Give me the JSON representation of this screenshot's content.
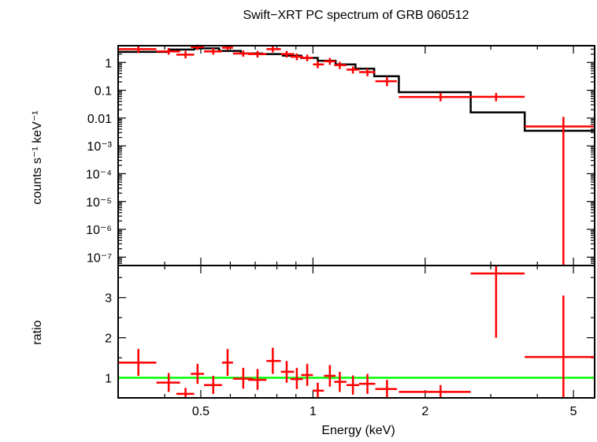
{
  "chart_data": [
    {
      "type": "scatter",
      "title": "Swift−XRT PC spectrum of GRB 060512",
      "xlabel": "Energy (keV)",
      "ylabel": "counts s⁻¹ keV⁻¹",
      "xscale": "log",
      "yscale": "log",
      "xlim": [
        0.3,
        5.7
      ],
      "ylim": [
        5e-08,
        4
      ],
      "x_ticks": [
        "0.5",
        "1",
        "2",
        "5"
      ],
      "y_ticks": [
        "1",
        "0.1",
        "0.01",
        "10⁻³",
        "10⁻⁴",
        "10⁻⁵",
        "10⁻⁶",
        "10⁻⁷"
      ],
      "series": [
        {
          "style": "error bars",
          "color": "#ff0000",
          "points": [
            {
              "x": 0.34,
              "xlo": 0.3,
              "xhi": 0.38,
              "y": 3.0,
              "ylo": 2.2,
              "yhi": 4.0
            },
            {
              "x": 0.41,
              "xlo": 0.38,
              "xhi": 0.44,
              "y": 2.5,
              "ylo": 1.9,
              "yhi": 3.3
            },
            {
              "x": 0.455,
              "xlo": 0.43,
              "xhi": 0.48,
              "y": 1.9,
              "ylo": 1.4,
              "yhi": 2.6
            },
            {
              "x": 0.49,
              "xlo": 0.47,
              "xhi": 0.51,
              "y": 3.6,
              "ylo": 2.8,
              "yhi": 4.4
            },
            {
              "x": 0.54,
              "xlo": 0.51,
              "xhi": 0.57,
              "y": 2.5,
              "ylo": 1.9,
              "yhi": 3.3
            },
            {
              "x": 0.59,
              "xlo": 0.57,
              "xhi": 0.61,
              "y": 3.4,
              "ylo": 2.7,
              "yhi": 4.2
            },
            {
              "x": 0.65,
              "xlo": 0.61,
              "xhi": 0.69,
              "y": 2.1,
              "ylo": 1.6,
              "yhi": 2.7
            },
            {
              "x": 0.71,
              "xlo": 0.67,
              "xhi": 0.75,
              "y": 2.0,
              "ylo": 1.5,
              "yhi": 2.6
            },
            {
              "x": 0.78,
              "xlo": 0.75,
              "xhi": 0.82,
              "y": 3.0,
              "ylo": 2.3,
              "yhi": 3.8
            },
            {
              "x": 0.85,
              "xlo": 0.82,
              "xhi": 0.89,
              "y": 2.0,
              "ylo": 1.5,
              "yhi": 2.6
            },
            {
              "x": 0.905,
              "xlo": 0.87,
              "xhi": 0.94,
              "y": 1.6,
              "ylo": 1.2,
              "yhi": 2.1
            },
            {
              "x": 0.965,
              "xlo": 0.93,
              "xhi": 1.0,
              "y": 1.45,
              "ylo": 1.1,
              "yhi": 1.9
            },
            {
              "x": 1.03,
              "xlo": 1.0,
              "xhi": 1.07,
              "y": 0.85,
              "ylo": 0.62,
              "yhi": 1.1
            },
            {
              "x": 1.11,
              "xlo": 1.07,
              "xhi": 1.15,
              "y": 1.1,
              "ylo": 0.82,
              "yhi": 1.45
            },
            {
              "x": 1.18,
              "xlo": 1.14,
              "xhi": 1.23,
              "y": 0.8,
              "ylo": 0.58,
              "yhi": 1.05
            },
            {
              "x": 1.28,
              "xlo": 1.23,
              "xhi": 1.33,
              "y": 0.55,
              "ylo": 0.4,
              "yhi": 0.72
            },
            {
              "x": 1.4,
              "xlo": 1.33,
              "xhi": 1.47,
              "y": 0.45,
              "ylo": 0.32,
              "yhi": 0.6
            },
            {
              "x": 1.58,
              "xlo": 1.47,
              "xhi": 1.68,
              "y": 0.21,
              "ylo": 0.14,
              "yhi": 0.3
            },
            {
              "x": 2.2,
              "xlo": 1.7,
              "xhi": 2.65,
              "y": 0.057,
              "ylo": 0.04,
              "yhi": 0.08
            },
            {
              "x": 3.1,
              "xlo": 2.65,
              "xhi": 3.7,
              "y": 0.058,
              "ylo": 0.04,
              "yhi": 0.08
            },
            {
              "x": 4.7,
              "xlo": 3.7,
              "xhi": 5.7,
              "y": 0.005,
              "ylo": 5e-08,
              "yhi": 0.011
            }
          ]
        },
        {
          "style": "step",
          "color": "#000000",
          "steps": [
            {
              "x0": 0.3,
              "x1": 0.41,
              "y": 2.4
            },
            {
              "x0": 0.41,
              "x1": 0.48,
              "y": 2.9
            },
            {
              "x0": 0.48,
              "x1": 0.56,
              "y": 3.2
            },
            {
              "x0": 0.56,
              "x1": 0.64,
              "y": 2.6
            },
            {
              "x0": 0.64,
              "x1": 0.73,
              "y": 2.1
            },
            {
              "x0": 0.73,
              "x1": 0.83,
              "y": 2.0
            },
            {
              "x0": 0.83,
              "x1": 0.93,
              "y": 1.75
            },
            {
              "x0": 0.93,
              "x1": 1.03,
              "y": 1.45
            },
            {
              "x0": 1.03,
              "x1": 1.15,
              "y": 1.15
            },
            {
              "x0": 1.15,
              "x1": 1.3,
              "y": 0.85
            },
            {
              "x0": 1.3,
              "x1": 1.46,
              "y": 0.6
            },
            {
              "x0": 1.46,
              "x1": 1.7,
              "y": 0.32
            },
            {
              "x0": 1.7,
              "x1": 2.65,
              "y": 0.085
            },
            {
              "x0": 2.65,
              "x1": 3.7,
              "y": 0.016
            },
            {
              "x0": 3.7,
              "x1": 5.7,
              "y": 0.0035
            }
          ]
        }
      ]
    },
    {
      "type": "scatter",
      "xlabel": "Energy (keV)",
      "ylabel": "ratio",
      "xscale": "log",
      "xlim": [
        0.3,
        5.7
      ],
      "ylim": [
        0.5,
        3.8
      ],
      "x_ticks": [
        "0.5",
        "1",
        "2",
        "5"
      ],
      "y_ticks": [
        "1",
        "2",
        "3"
      ],
      "reference_line": {
        "y": 1,
        "color": "#00ff00"
      },
      "series": [
        {
          "style": "error bars",
          "color": "#ff0000",
          "points": [
            {
              "x": 0.34,
              "xlo": 0.3,
              "xhi": 0.38,
              "y": 1.38,
              "ylo": 1.05,
              "yhi": 1.72
            },
            {
              "x": 0.41,
              "xlo": 0.38,
              "xhi": 0.44,
              "y": 0.88,
              "ylo": 0.65,
              "yhi": 1.12
            },
            {
              "x": 0.455,
              "xlo": 0.43,
              "xhi": 0.48,
              "y": 0.6,
              "ylo": 0.5,
              "yhi": 0.75
            },
            {
              "x": 0.49,
              "xlo": 0.47,
              "xhi": 0.51,
              "y": 1.1,
              "ylo": 0.85,
              "yhi": 1.35
            },
            {
              "x": 0.54,
              "xlo": 0.51,
              "xhi": 0.57,
              "y": 0.82,
              "ylo": 0.6,
              "yhi": 1.05
            },
            {
              "x": 0.59,
              "xlo": 0.57,
              "xhi": 0.61,
              "y": 1.38,
              "ylo": 1.05,
              "yhi": 1.72
            },
            {
              "x": 0.65,
              "xlo": 0.61,
              "xhi": 0.69,
              "y": 0.98,
              "ylo": 0.73,
              "yhi": 1.25
            },
            {
              "x": 0.71,
              "xlo": 0.67,
              "xhi": 0.75,
              "y": 0.95,
              "ylo": 0.7,
              "yhi": 1.22
            },
            {
              "x": 0.78,
              "xlo": 0.75,
              "xhi": 0.82,
              "y": 1.42,
              "ylo": 1.1,
              "yhi": 1.75
            },
            {
              "x": 0.85,
              "xlo": 0.82,
              "xhi": 0.89,
              "y": 1.15,
              "ylo": 0.88,
              "yhi": 1.42
            },
            {
              "x": 0.905,
              "xlo": 0.87,
              "xhi": 0.94,
              "y": 0.97,
              "ylo": 0.72,
              "yhi": 1.25
            },
            {
              "x": 0.965,
              "xlo": 0.93,
              "xhi": 1.0,
              "y": 1.07,
              "ylo": 0.8,
              "yhi": 1.35
            },
            {
              "x": 1.03,
              "xlo": 1.0,
              "xhi": 1.07,
              "y": 0.68,
              "ylo": 0.5,
              "yhi": 0.88
            },
            {
              "x": 1.11,
              "xlo": 1.07,
              "xhi": 1.15,
              "y": 1.05,
              "ylo": 0.78,
              "yhi": 1.32
            },
            {
              "x": 1.18,
              "xlo": 1.14,
              "xhi": 1.23,
              "y": 0.9,
              "ylo": 0.65,
              "yhi": 1.15
            },
            {
              "x": 1.28,
              "xlo": 1.23,
              "xhi": 1.33,
              "y": 0.82,
              "ylo": 0.58,
              "yhi": 1.06
            },
            {
              "x": 1.4,
              "xlo": 1.33,
              "xhi": 1.47,
              "y": 0.85,
              "ylo": 0.6,
              "yhi": 1.1
            },
            {
              "x": 1.58,
              "xlo": 1.47,
              "xhi": 1.68,
              "y": 0.72,
              "ylo": 0.5,
              "yhi": 0.95
            },
            {
              "x": 2.2,
              "xlo": 1.7,
              "xhi": 2.65,
              "y": 0.65,
              "ylo": 0.5,
              "yhi": 0.82
            },
            {
              "x": 3.1,
              "xlo": 2.65,
              "xhi": 3.7,
              "y": 3.6,
              "ylo": 2.0,
              "yhi": 3.8
            },
            {
              "x": 4.7,
              "xlo": 3.7,
              "xhi": 5.7,
              "y": 1.52,
              "ylo": 0.5,
              "yhi": 3.05
            }
          ]
        }
      ]
    }
  ]
}
